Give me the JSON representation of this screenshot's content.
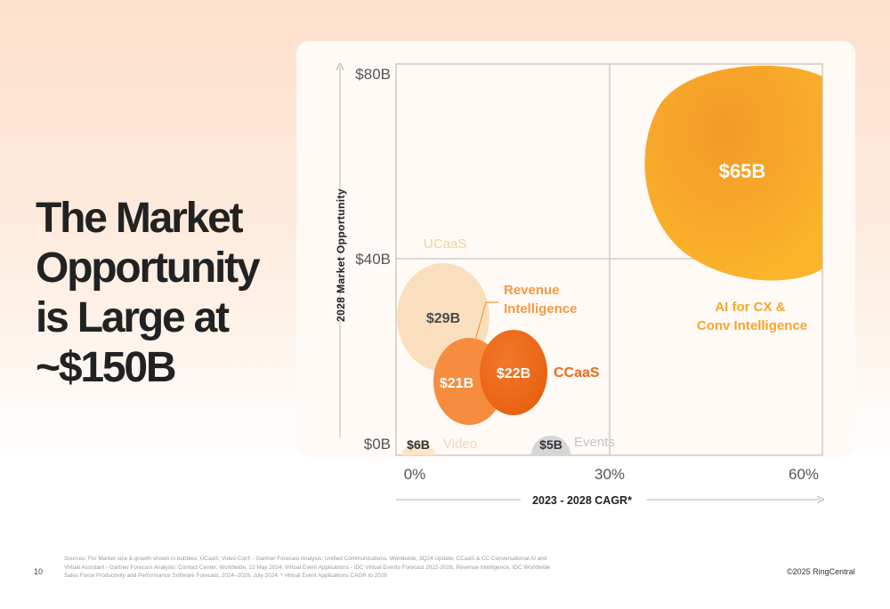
{
  "slide": {
    "title_lines": [
      "The Market",
      "Opportunity",
      "is Large at",
      "~$150B"
    ],
    "page_number": "10",
    "sources": "Sources: For Market size & growth shown in bubbles: UCaaS; Video Conf. - Gartner Forecast Analysis: Unified Communications, Worldwide, 3Q24 Update; CCaaS & CC Conversational AI and Virtual Assistant - Gartner Forecast Analysis: Contact Center, Worldwide, 22 May 2024; Virtual Event Applications - IDC Virtual Events Forecast 2022-2026, Revenue Intelligence, IDC Worldwide Sales Force Productivity and Performance Software Forecast, 2024–2028, July 2024; * Virtual Event Applications CAGR to 2026",
    "copyright": "©2025 RingCentral"
  },
  "chart_data": {
    "type": "bubble",
    "xlabel": "2023 - 2028 CAGR*",
    "ylabel": "2028 Market Opportunity",
    "x_ticks": [
      "0%",
      "30%",
      "60%"
    ],
    "y_ticks": [
      "$0B",
      "$40B",
      "$80B"
    ],
    "xlim": [
      0,
      65
    ],
    "ylim": [
      0,
      80
    ],
    "quadrant_lines": {
      "x": 30,
      "y": 40
    },
    "series": [
      {
        "name": "UCaaS",
        "value_label": "$29B",
        "x": 5,
        "y": 28,
        "size": 29,
        "color": "#f9dfbd",
        "label_color": "#f9dfbd",
        "value_color": "#4a4a4a"
      },
      {
        "name": "Revenue Intelligence",
        "value_label": "$21B",
        "x": 9,
        "y": 15,
        "size": 21,
        "color": "#f68c3d",
        "label_color": "#f59a43",
        "value_color": "#ffffff"
      },
      {
        "name": "CCaaS",
        "value_label": "$22B",
        "x": 16,
        "y": 15,
        "size": 22,
        "color": "#ee6a1c",
        "label_color": "#ee6a1c",
        "value_color": "#ffffff"
      },
      {
        "name": "Video",
        "value_label": "$6B",
        "x": 1,
        "y": 0,
        "size": 6,
        "color": "#fbe6c8",
        "label_color": "#f6ddc0",
        "value_color": "#333333"
      },
      {
        "name": "Events",
        "value_label": "$5B",
        "x": 21,
        "y": 0,
        "size": 5,
        "color": "#d6d6d6",
        "label_color": "#c9c9c9",
        "value_color": "#333333"
      },
      {
        "name": "AI for CX & Conv Intelligence",
        "value_label": "$65B",
        "x": 54,
        "y": 62,
        "size": 65,
        "color": "#f7a52a",
        "label_color": "#f6a62a",
        "value_color": "#ffffff"
      }
    ]
  }
}
